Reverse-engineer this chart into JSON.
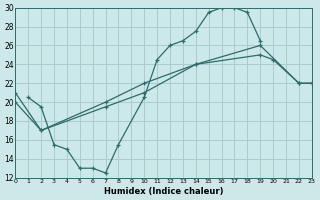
{
  "xlabel": "Humidex (Indice chaleur)",
  "xlim": [
    0,
    23
  ],
  "ylim": [
    12,
    30
  ],
  "xticks": [
    0,
    1,
    2,
    3,
    4,
    5,
    6,
    7,
    8,
    9,
    10,
    11,
    12,
    13,
    14,
    15,
    16,
    17,
    18,
    19,
    20,
    21,
    22,
    23
  ],
  "yticks": [
    12,
    14,
    16,
    18,
    20,
    22,
    24,
    26,
    28,
    30
  ],
  "bg_color": "#cce8e8",
  "grid_color": "#aacccc",
  "line_color": "#2a6e6a",
  "curve_x": [
    1,
    2,
    3,
    4,
    5,
    6,
    7,
    8,
    10,
    11,
    12,
    13,
    14,
    15,
    16,
    17,
    18,
    19
  ],
  "curve_y": [
    20.5,
    19.5,
    15.5,
    15,
    13,
    13,
    12.5,
    15.5,
    20.5,
    24.5,
    26,
    26.5,
    27.5,
    29.5,
    30,
    30,
    29.5,
    26.5
  ],
  "upper_diag_x": [
    0,
    2,
    7,
    10,
    14,
    19,
    20,
    22,
    23
  ],
  "upper_diag_y": [
    21,
    17,
    20,
    22,
    24,
    25,
    24.5,
    22,
    22
  ],
  "lower_diag_x": [
    0,
    2,
    7,
    10,
    14,
    19,
    22,
    23
  ],
  "lower_diag_y": [
    20,
    17,
    19.5,
    21,
    24,
    26,
    22,
    22
  ]
}
